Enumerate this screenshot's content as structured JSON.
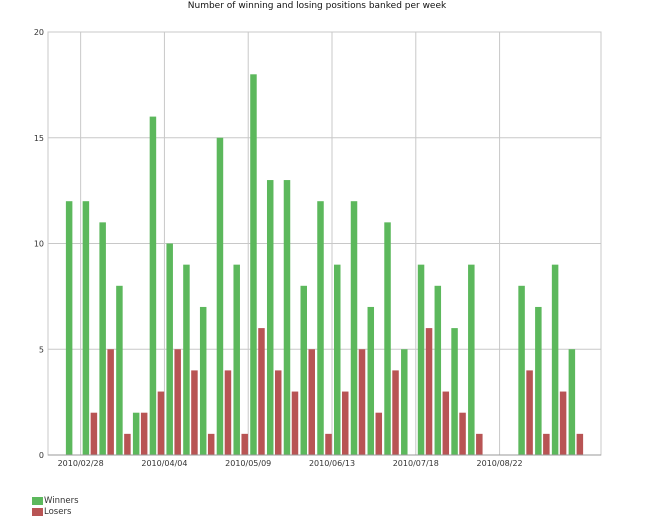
{
  "chart_data": {
    "type": "bar",
    "title": "Number of winning and losing positions banked per week",
    "xlabel": "",
    "ylabel": "",
    "ylim": [
      0,
      20
    ],
    "yticks": [
      0,
      5,
      10,
      15,
      20
    ],
    "x_tick_labels": [
      "2010/02/28",
      "2010/04/04",
      "2010/05/09",
      "2010/06/13",
      "2010/07/18",
      "2010/08/22"
    ],
    "grid": true,
    "legend_position": "bottom-left",
    "series": [
      {
        "name": "Winners",
        "color": "#5cb85c",
        "values": [
          12,
          12,
          11,
          8,
          2,
          16,
          10,
          9,
          7,
          15,
          9,
          18,
          13,
          13,
          8,
          12,
          9,
          12,
          7,
          11,
          5,
          9,
          8,
          6,
          9,
          0,
          0,
          8,
          7,
          9,
          5
        ]
      },
      {
        "name": "Losers",
        "color": "#b85454",
        "values": [
          0,
          2,
          5,
          1,
          2,
          3,
          5,
          4,
          1,
          4,
          1,
          6,
          4,
          3,
          5,
          1,
          3,
          5,
          2,
          4,
          0,
          6,
          3,
          2,
          1,
          0,
          0,
          4,
          1,
          3,
          1
        ]
      }
    ]
  }
}
